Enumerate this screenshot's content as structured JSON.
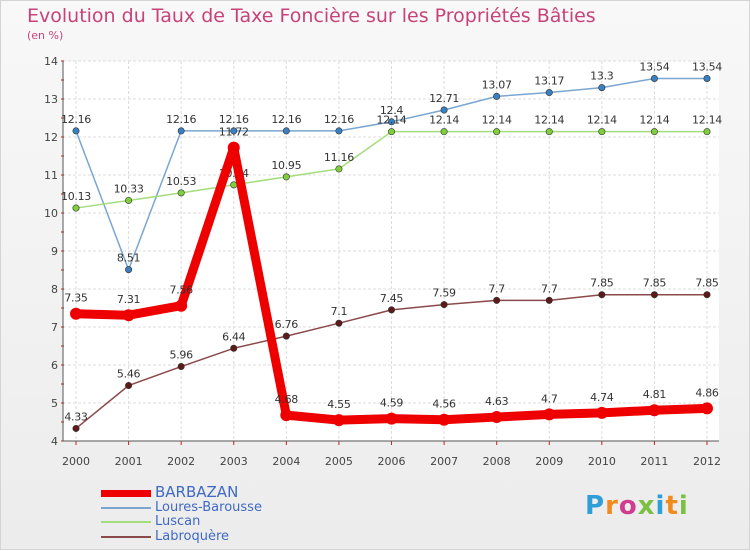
{
  "chart_data": {
    "type": "line",
    "title": "Evolution du Taux de Taxe Foncière sur les Propriétés Bâties",
    "subtitle": "(en %)",
    "xlabel": "",
    "ylabel": "",
    "ylim": [
      4,
      14
    ],
    "yticks": [
      "4",
      "5",
      "6",
      "7",
      "8",
      "9",
      "10",
      "11",
      "12",
      "13",
      "14"
    ],
    "categories": [
      "2000",
      "2001",
      "2002",
      "2003",
      "2004",
      "2005",
      "2006",
      "2007",
      "2008",
      "2009",
      "2010",
      "2011",
      "2012"
    ],
    "series": [
      {
        "name": "Loures-Barousse",
        "color": "#7aa6cf",
        "marker": "#3a7fc0",
        "values": [
          12.16,
          8.51,
          12.16,
          12.16,
          12.16,
          12.16,
          12.4,
          12.71,
          13.07,
          13.17,
          13.3,
          13.54,
          13.54
        ],
        "labels": [
          "12.16",
          "8.51",
          "12.16",
          "12.16",
          "12.16",
          "12.16",
          "12.4",
          "12.71",
          "13.07",
          "13.17",
          "13.3",
          "13.54",
          "13.54"
        ]
      },
      {
        "name": "Luscan",
        "color": "#a3dd7d",
        "marker": "#7fcf3c",
        "values": [
          10.13,
          10.33,
          10.53,
          10.74,
          10.95,
          11.16,
          12.14,
          12.14,
          12.14,
          12.14,
          12.14,
          12.14,
          12.14
        ],
        "labels": [
          "10.13",
          "10.33",
          "10.53",
          "10.74",
          "10.95",
          "11.16",
          "12.14",
          "12.14",
          "12.14",
          "12.14",
          "12.14",
          "12.14",
          "12.14"
        ]
      },
      {
        "name": "Labroquère",
        "color": "#8a4a4a",
        "marker": "#5c1a1a",
        "values": [
          4.33,
          5.46,
          5.96,
          6.44,
          6.76,
          7.1,
          7.45,
          7.59,
          7.7,
          7.7,
          7.85,
          7.85,
          7.85
        ],
        "labels": [
          "4.33",
          "5.46",
          "5.96",
          "6.44",
          "6.76",
          "7.1",
          "7.45",
          "7.59",
          "7.7",
          "7.7",
          "7.85",
          "7.85",
          "7.85"
        ]
      },
      {
        "name": "BARBAZAN",
        "color": "#ee0000",
        "marker": "#ee0000",
        "values": [
          7.35,
          7.31,
          7.56,
          11.72,
          4.68,
          4.55,
          4.59,
          4.56,
          4.63,
          4.7,
          4.74,
          4.81,
          4.86
        ],
        "labels": [
          "7.35",
          "7.31",
          "7.56",
          "11.72",
          "4.68",
          "4.55",
          "4.59",
          "4.56",
          "4.63",
          "4.7",
          "4.74",
          "4.81",
          "4.86"
        ]
      }
    ],
    "legend": [
      "BARBAZAN",
      "Loures-Barousse",
      "Luscan",
      "Labroquère"
    ],
    "legend_position": "bottom-left"
  },
  "brand": {
    "letters": [
      {
        "ch": "P",
        "color": "#2f9fd8"
      },
      {
        "ch": "r",
        "color": "#f28b1e"
      },
      {
        "ch": "o",
        "color": "#d23c8e"
      },
      {
        "ch": "x",
        "color": "#7cc043"
      },
      {
        "ch": "i",
        "color": "#2f9fd8"
      },
      {
        "ch": "t",
        "color": "#f28b1e"
      },
      {
        "ch": "i",
        "color": "#7cc043"
      }
    ]
  }
}
